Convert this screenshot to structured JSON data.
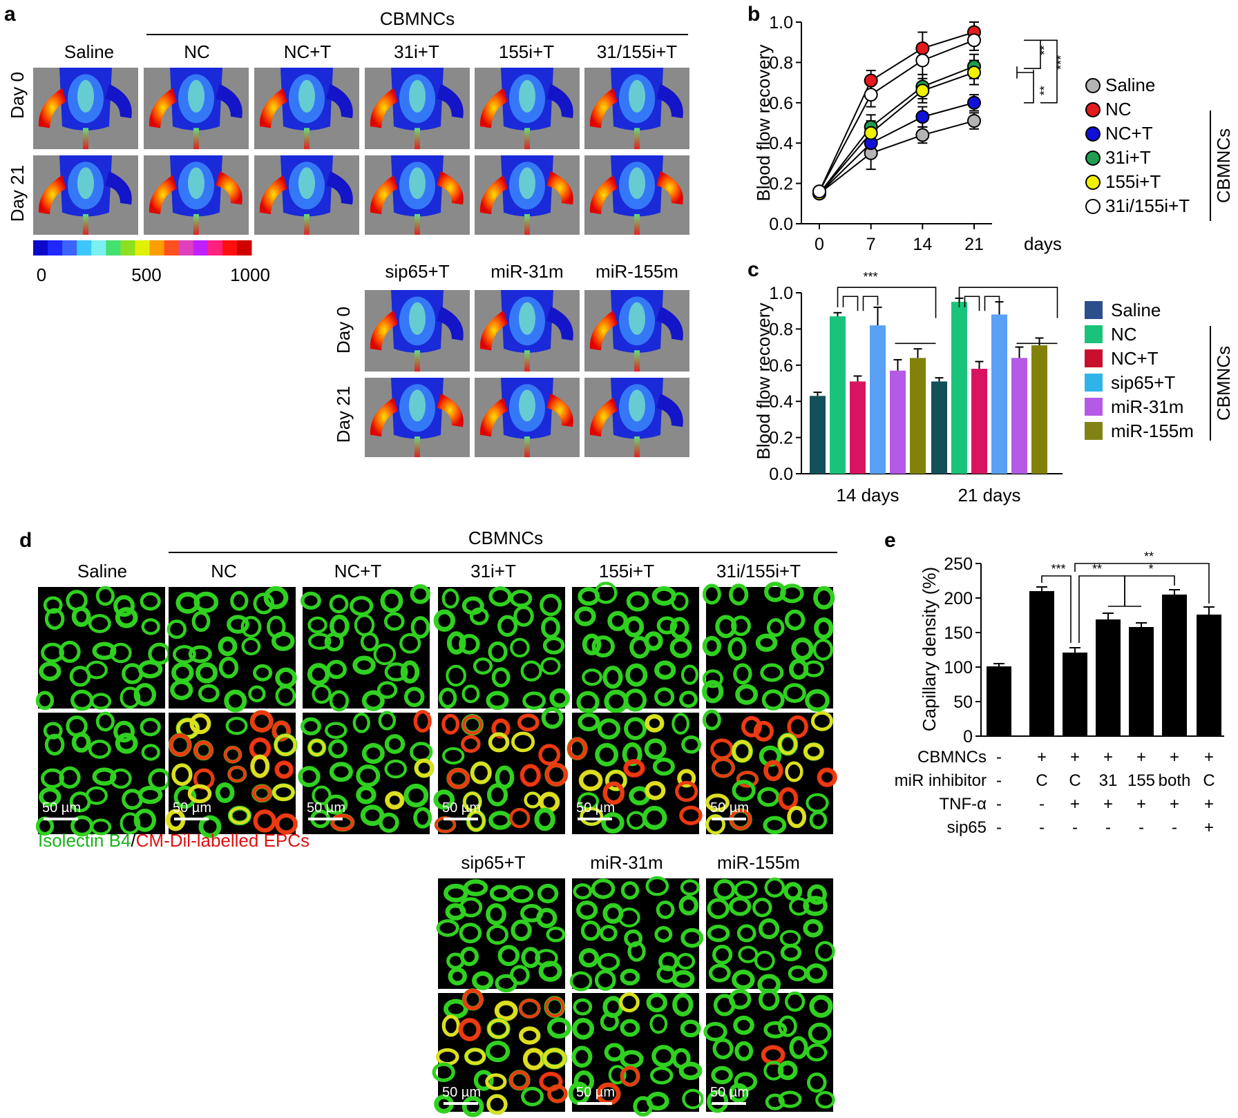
{
  "panel_letters": {
    "a": "a",
    "b": "b",
    "c": "c",
    "d": "d",
    "e": "e"
  },
  "panel_a": {
    "group_label": "CBMNCs",
    "top_columns": [
      "Saline",
      "NC",
      "NC+T",
      "31i+T",
      "155i+T",
      "31/155i+T"
    ],
    "bottom_columns": [
      "sip65+T",
      "miR-31m",
      "miR-155m"
    ],
    "row_labels": [
      "Day 0",
      "Day 21"
    ],
    "colorbar_ticks": [
      "0",
      "500",
      "1000"
    ],
    "colorbar_colors": [
      "#0a0ac8",
      "#1e28ff",
      "#3c64ff",
      "#3cc8ff",
      "#7cf0f0",
      "#44e070",
      "#8ce020",
      "#e0f000",
      "#ff9c00",
      "#ff5020",
      "#e040c0",
      "#c020ff",
      "#ff2080",
      "#ff1010",
      "#d00000"
    ]
  },
  "panel_b": {
    "chart_data": {
      "type": "line",
      "x": [
        0,
        7,
        14,
        21
      ],
      "xticks": [
        "0",
        "7",
        "14",
        "21"
      ],
      "xunit": "days",
      "ylabel": "Blood flow recovery",
      "ylim": [
        0,
        1.0
      ],
      "yticks": [
        "0.0",
        "0.2",
        "0.4",
        "0.6",
        "0.8",
        "1.0"
      ],
      "series": [
        {
          "name": "Saline",
          "color": "#b4b4b4",
          "values": [
            0.15,
            0.35,
            0.44,
            0.51
          ],
          "err": [
            0.02,
            0.08,
            0.04,
            0.04
          ]
        },
        {
          "name": "NC",
          "color": "#e41a1c",
          "values": [
            0.16,
            0.71,
            0.87,
            0.95
          ],
          "err": [
            0.02,
            0.05,
            0.08,
            0.05
          ]
        },
        {
          "name": "NC+T",
          "color": "#1010d8",
          "values": [
            0.15,
            0.4,
            0.53,
            0.6
          ],
          "err": [
            0.02,
            0.06,
            0.05,
            0.04
          ]
        },
        {
          "name": "31i+T",
          "color": "#1e9e50",
          "values": [
            0.15,
            0.48,
            0.68,
            0.78
          ],
          "err": [
            0.02,
            0.06,
            0.06,
            0.06
          ]
        },
        {
          "name": "155i+T",
          "color": "#f0f000",
          "values": [
            0.15,
            0.45,
            0.66,
            0.75
          ],
          "err": [
            0.02,
            0.06,
            0.06,
            0.06
          ]
        },
        {
          "name": "31i/155i+T",
          "color": "#ffffff",
          "values": [
            0.16,
            0.64,
            0.81,
            0.91
          ],
          "err": [
            0.02,
            0.06,
            0.07,
            0.05
          ]
        }
      ],
      "group_label": "CBMNCs",
      "sig": [
        "**",
        "**",
        "***"
      ]
    }
  },
  "panel_c": {
    "chart_data": {
      "type": "bar",
      "categories": [
        "14 days",
        "21 days"
      ],
      "ylabel": "Blood flow recovery",
      "ylim": [
        0,
        1.0
      ],
      "yticks": [
        "0.0",
        "0.2",
        "0.4",
        "0.6",
        "0.8",
        "1.0"
      ],
      "series": [
        {
          "name": "Saline",
          "values": [
            0.43,
            0.51
          ],
          "err": [
            0.02,
            0.02
          ],
          "color": "#14505a",
          "legend_color": "#2b4f8c"
        },
        {
          "name": "NC",
          "values": [
            0.87,
            0.95
          ],
          "err": [
            0.02,
            0.02
          ],
          "color": "#19c47a",
          "legend_color": "#19c47a"
        },
        {
          "name": "NC+T",
          "values": [
            0.51,
            0.58
          ],
          "err": [
            0.03,
            0.04
          ],
          "color": "#d81460",
          "legend_color": "#c8102e"
        },
        {
          "name": "sip65+T",
          "values": [
            0.82,
            0.88
          ],
          "err": [
            0.1,
            0.07
          ],
          "color": "#5aa0f5",
          "legend_color": "#30b4e8"
        },
        {
          "name": "miR-31m",
          "values": [
            0.57,
            0.64
          ],
          "err": [
            0.06,
            0.06
          ],
          "color": "#b45ae6",
          "legend_color": "#b45ae6"
        },
        {
          "name": "miR-155m",
          "values": [
            0.64,
            0.71
          ],
          "err": [
            0.05,
            0.04
          ],
          "color": "#82820a",
          "legend_color": "#828214"
        }
      ],
      "group_label": "CBMNCs",
      "sig": [
        "***"
      ]
    }
  },
  "panel_d": {
    "group_label": "CBMNCs",
    "top_columns": [
      "Saline",
      "NC",
      "NC+T",
      "31i+T",
      "155i+T",
      "31i/155i+T"
    ],
    "bottom_columns": [
      "sip65+T",
      "miR-31m",
      "miR-155m"
    ],
    "scale_bar": "50 µm",
    "caption_green": "Isolectin B4",
    "caption_sep": "/",
    "caption_red": "CM-Dil-labelled EPCs"
  },
  "panel_e": {
    "chart_data": {
      "type": "bar",
      "values": [
        101,
        210,
        121,
        169,
        158,
        205,
        176
      ],
      "err": [
        4,
        6,
        7,
        9,
        6,
        7,
        11
      ],
      "ylabel": "Capillary density (%)",
      "ylim": [
        0,
        250
      ],
      "yticks": [
        "0",
        "50",
        "100",
        "150",
        "200",
        "250"
      ],
      "condition_rows": [
        {
          "label": "CBMNCs",
          "values": [
            "-",
            "+",
            "+",
            "+",
            "+",
            "+",
            "+"
          ]
        },
        {
          "label": "miR inhibitor",
          "values": [
            "-",
            "C",
            "C",
            "31",
            "155",
            "both",
            "C"
          ]
        },
        {
          "label": "TNF-α",
          "values": [
            "-",
            "-",
            "+",
            "+",
            "+",
            "+",
            "+"
          ]
        },
        {
          "label": "sip65",
          "values": [
            "-",
            "-",
            "-",
            "-",
            "-",
            "-",
            "+"
          ]
        }
      ],
      "sig": [
        "***",
        "**",
        "*",
        "**"
      ]
    }
  }
}
